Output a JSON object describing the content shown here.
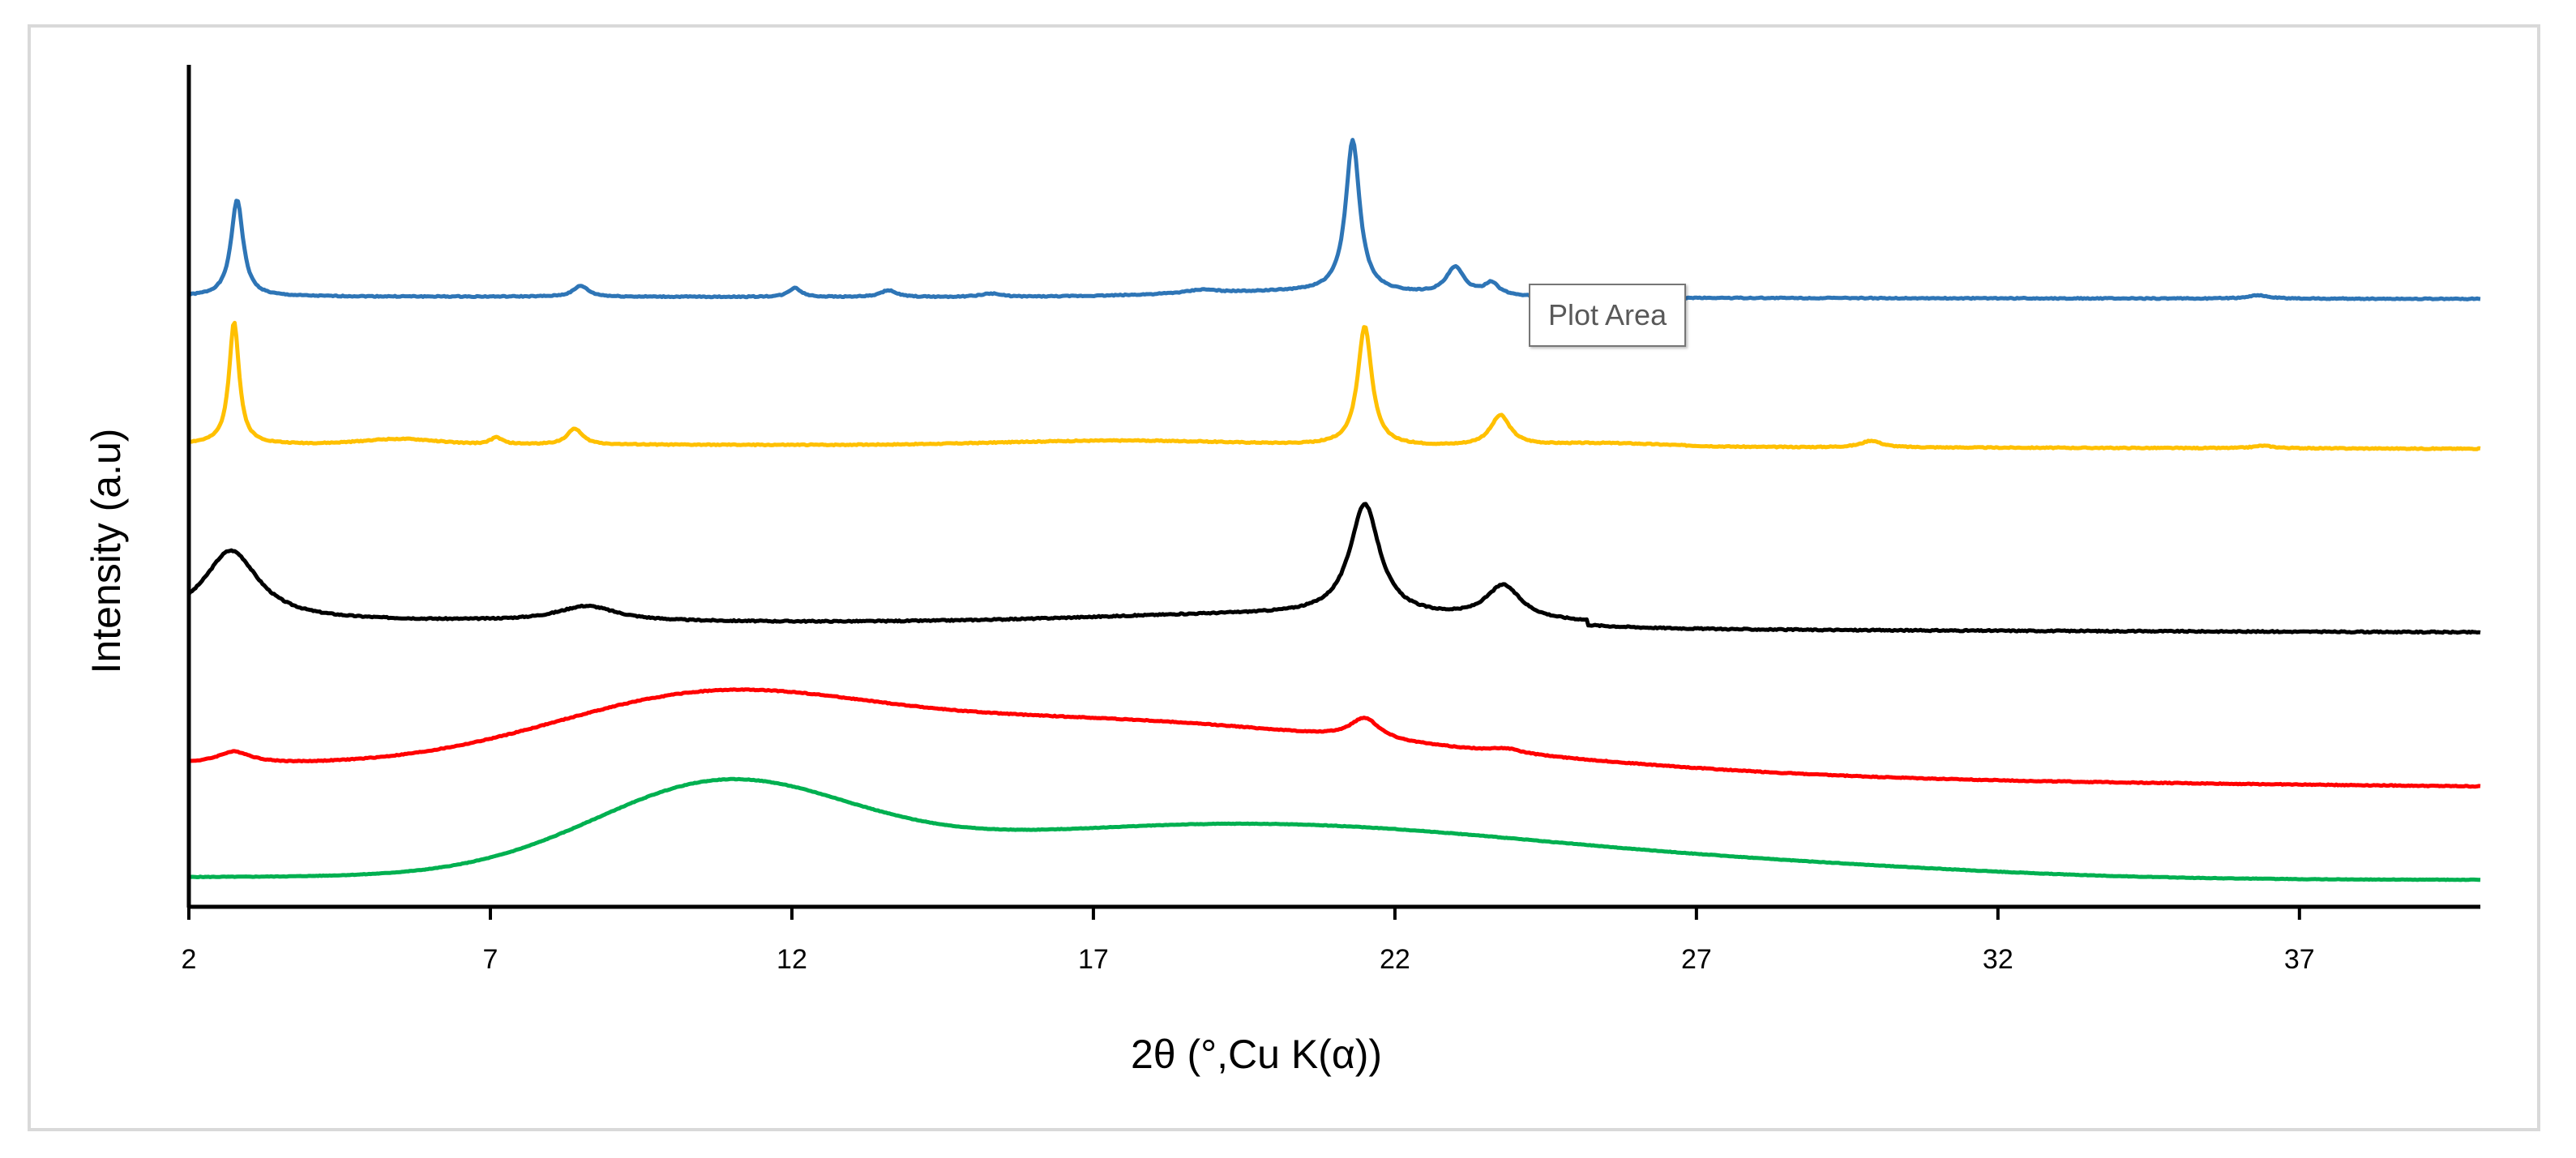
{
  "tooltip": {
    "text": "Plot Area"
  },
  "chart_data": {
    "type": "line",
    "title": "",
    "xlabel": "2θ (°,Cu K(α))",
    "ylabel": "Intensity (a.u)",
    "xlim": [
      2,
      40
    ],
    "ylim": [
      0,
      100
    ],
    "grid": false,
    "legend": "none",
    "xticks": [
      2,
      7,
      12,
      17,
      22,
      27,
      32,
      37
    ],
    "yticks_shown": false,
    "series": [
      {
        "name": "blue",
        "color": "#2e75b6",
        "baseline": 72.5,
        "tilt": -0.3,
        "noise": 0.12,
        "seed": 1,
        "peaks": [
          [
            2.8,
            11.5,
            0.12
          ],
          [
            8.5,
            1.3,
            0.15
          ],
          [
            12.05,
            1.1,
            0.12
          ],
          [
            13.6,
            0.8,
            0.15
          ],
          [
            15.3,
            0.4,
            0.2
          ],
          [
            18.8,
            0.4,
            0.3
          ],
          [
            21.3,
            18.0,
            0.14
          ],
          [
            23.0,
            3.2,
            0.18
          ],
          [
            23.6,
            1.4,
            0.15
          ],
          [
            36.3,
            0.4,
            0.2
          ]
        ],
        "humps": [
          [
            20.5,
            0.7,
            2.0
          ]
        ]
      },
      {
        "name": "yellow",
        "color": "#ffc000",
        "baseline": 55.0,
        "tilt": -0.6,
        "noise": 0.12,
        "seed": 2,
        "peaks": [
          [
            2.75,
            14.5,
            0.1
          ],
          [
            7.1,
            0.8,
            0.12
          ],
          [
            8.4,
            1.9,
            0.15
          ],
          [
            21.5,
            14.2,
            0.14
          ],
          [
            23.75,
            3.6,
            0.2
          ],
          [
            29.9,
            0.8,
            0.2
          ],
          [
            36.4,
            0.3,
            0.2
          ]
        ],
        "humps": [
          [
            5.5,
            0.6,
            0.6
          ],
          [
            17.5,
            0.6,
            2.0
          ],
          [
            25.5,
            0.4,
            1.0
          ]
        ]
      },
      {
        "name": "black",
        "color": "#000000",
        "baseline": 34.0,
        "tilt": -0.8,
        "noise": 0.15,
        "seed": 3,
        "peaks": [
          [
            2.7,
            8.3,
            0.55
          ],
          [
            8.6,
            1.8,
            0.6
          ],
          [
            21.5,
            13.2,
            0.3
          ],
          [
            23.8,
            4.0,
            0.35
          ]
        ],
        "humps": [
          [
            20.0,
            1.1,
            3.0
          ]
        ],
        "step": [
          25.2,
          -0.6
        ]
      },
      {
        "name": "red",
        "color": "#ff0000",
        "baseline": 17.0,
        "tilt": -2.7,
        "noise": 0.1,
        "seed": 4,
        "peaks": [
          [
            2.75,
            1.4,
            0.35
          ],
          [
            21.5,
            2.5,
            0.3
          ],
          [
            23.85,
            0.5,
            0.3
          ]
        ],
        "humps": [
          [
            10.5,
            7.6,
            2.6
          ],
          [
            15.8,
            3.4,
            3.5
          ],
          [
            20.0,
            3.6,
            4.8
          ]
        ]
      },
      {
        "name": "green",
        "color": "#00b050",
        "baseline": 3.5,
        "tilt": -0.3,
        "noise": 0.06,
        "seed": 5,
        "peaks": [],
        "humps": [
          [
            10.8,
            9.8,
            2.1
          ],
          [
            19.5,
            6.5,
            5.5
          ],
          [
            29.5,
            0.6,
            3.0
          ]
        ]
      }
    ]
  }
}
